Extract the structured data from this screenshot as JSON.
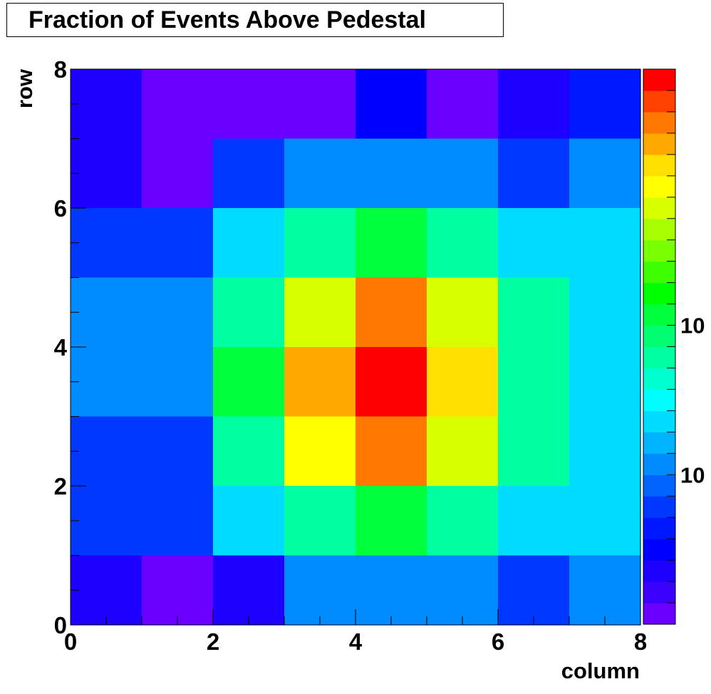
{
  "chart_data": {
    "type": "heatmap",
    "title": "Fraction of Events Above Pedestal",
    "xlabel": "column",
    "ylabel": "row",
    "x_range": [
      0,
      8
    ],
    "y_range": [
      0,
      8
    ],
    "x_ticks": [
      "0",
      "2",
      "4",
      "6",
      "8"
    ],
    "y_ticks": [
      "0",
      "2",
      "4",
      "6",
      "8"
    ],
    "rows_top_to_bottom": [
      [
        2,
        0,
        0,
        0,
        3,
        0,
        2,
        4
      ],
      [
        2,
        0,
        5,
        7,
        7,
        7,
        5,
        7
      ],
      [
        5,
        5,
        9,
        12,
        14,
        12,
        9,
        9
      ],
      [
        7,
        7,
        12,
        19,
        23,
        19,
        12,
        9
      ],
      [
        7,
        7,
        14,
        22,
        25,
        21,
        12,
        9
      ],
      [
        5,
        5,
        12,
        20,
        23,
        19,
        12,
        9
      ],
      [
        5,
        5,
        9,
        12,
        14,
        12,
        9,
        9
      ],
      [
        2,
        0,
        2,
        7,
        7,
        7,
        5,
        7
      ]
    ],
    "palette": [
      "#6a00ff",
      "#3c00ff",
      "#1e00ff",
      "#0000ff",
      "#0018ff",
      "#0038ff",
      "#0064ff",
      "#008cff",
      "#00b4ff",
      "#00dcff",
      "#00fdff",
      "#00ffd0",
      "#00ffa0",
      "#00ff70",
      "#00ff3c",
      "#00ff00",
      "#3cff00",
      "#78ff00",
      "#a8ff00",
      "#d8ff00",
      "#ffff00",
      "#ffe000",
      "#ffa800",
      "#ff7800",
      "#ff4000",
      "#ff0000"
    ],
    "colorbar_labels": [
      "10",
      "10"
    ],
    "colorbar_label_values": [
      14,
      7
    ],
    "colorbar_range": [
      0,
      26
    ],
    "z_scale": "log"
  }
}
